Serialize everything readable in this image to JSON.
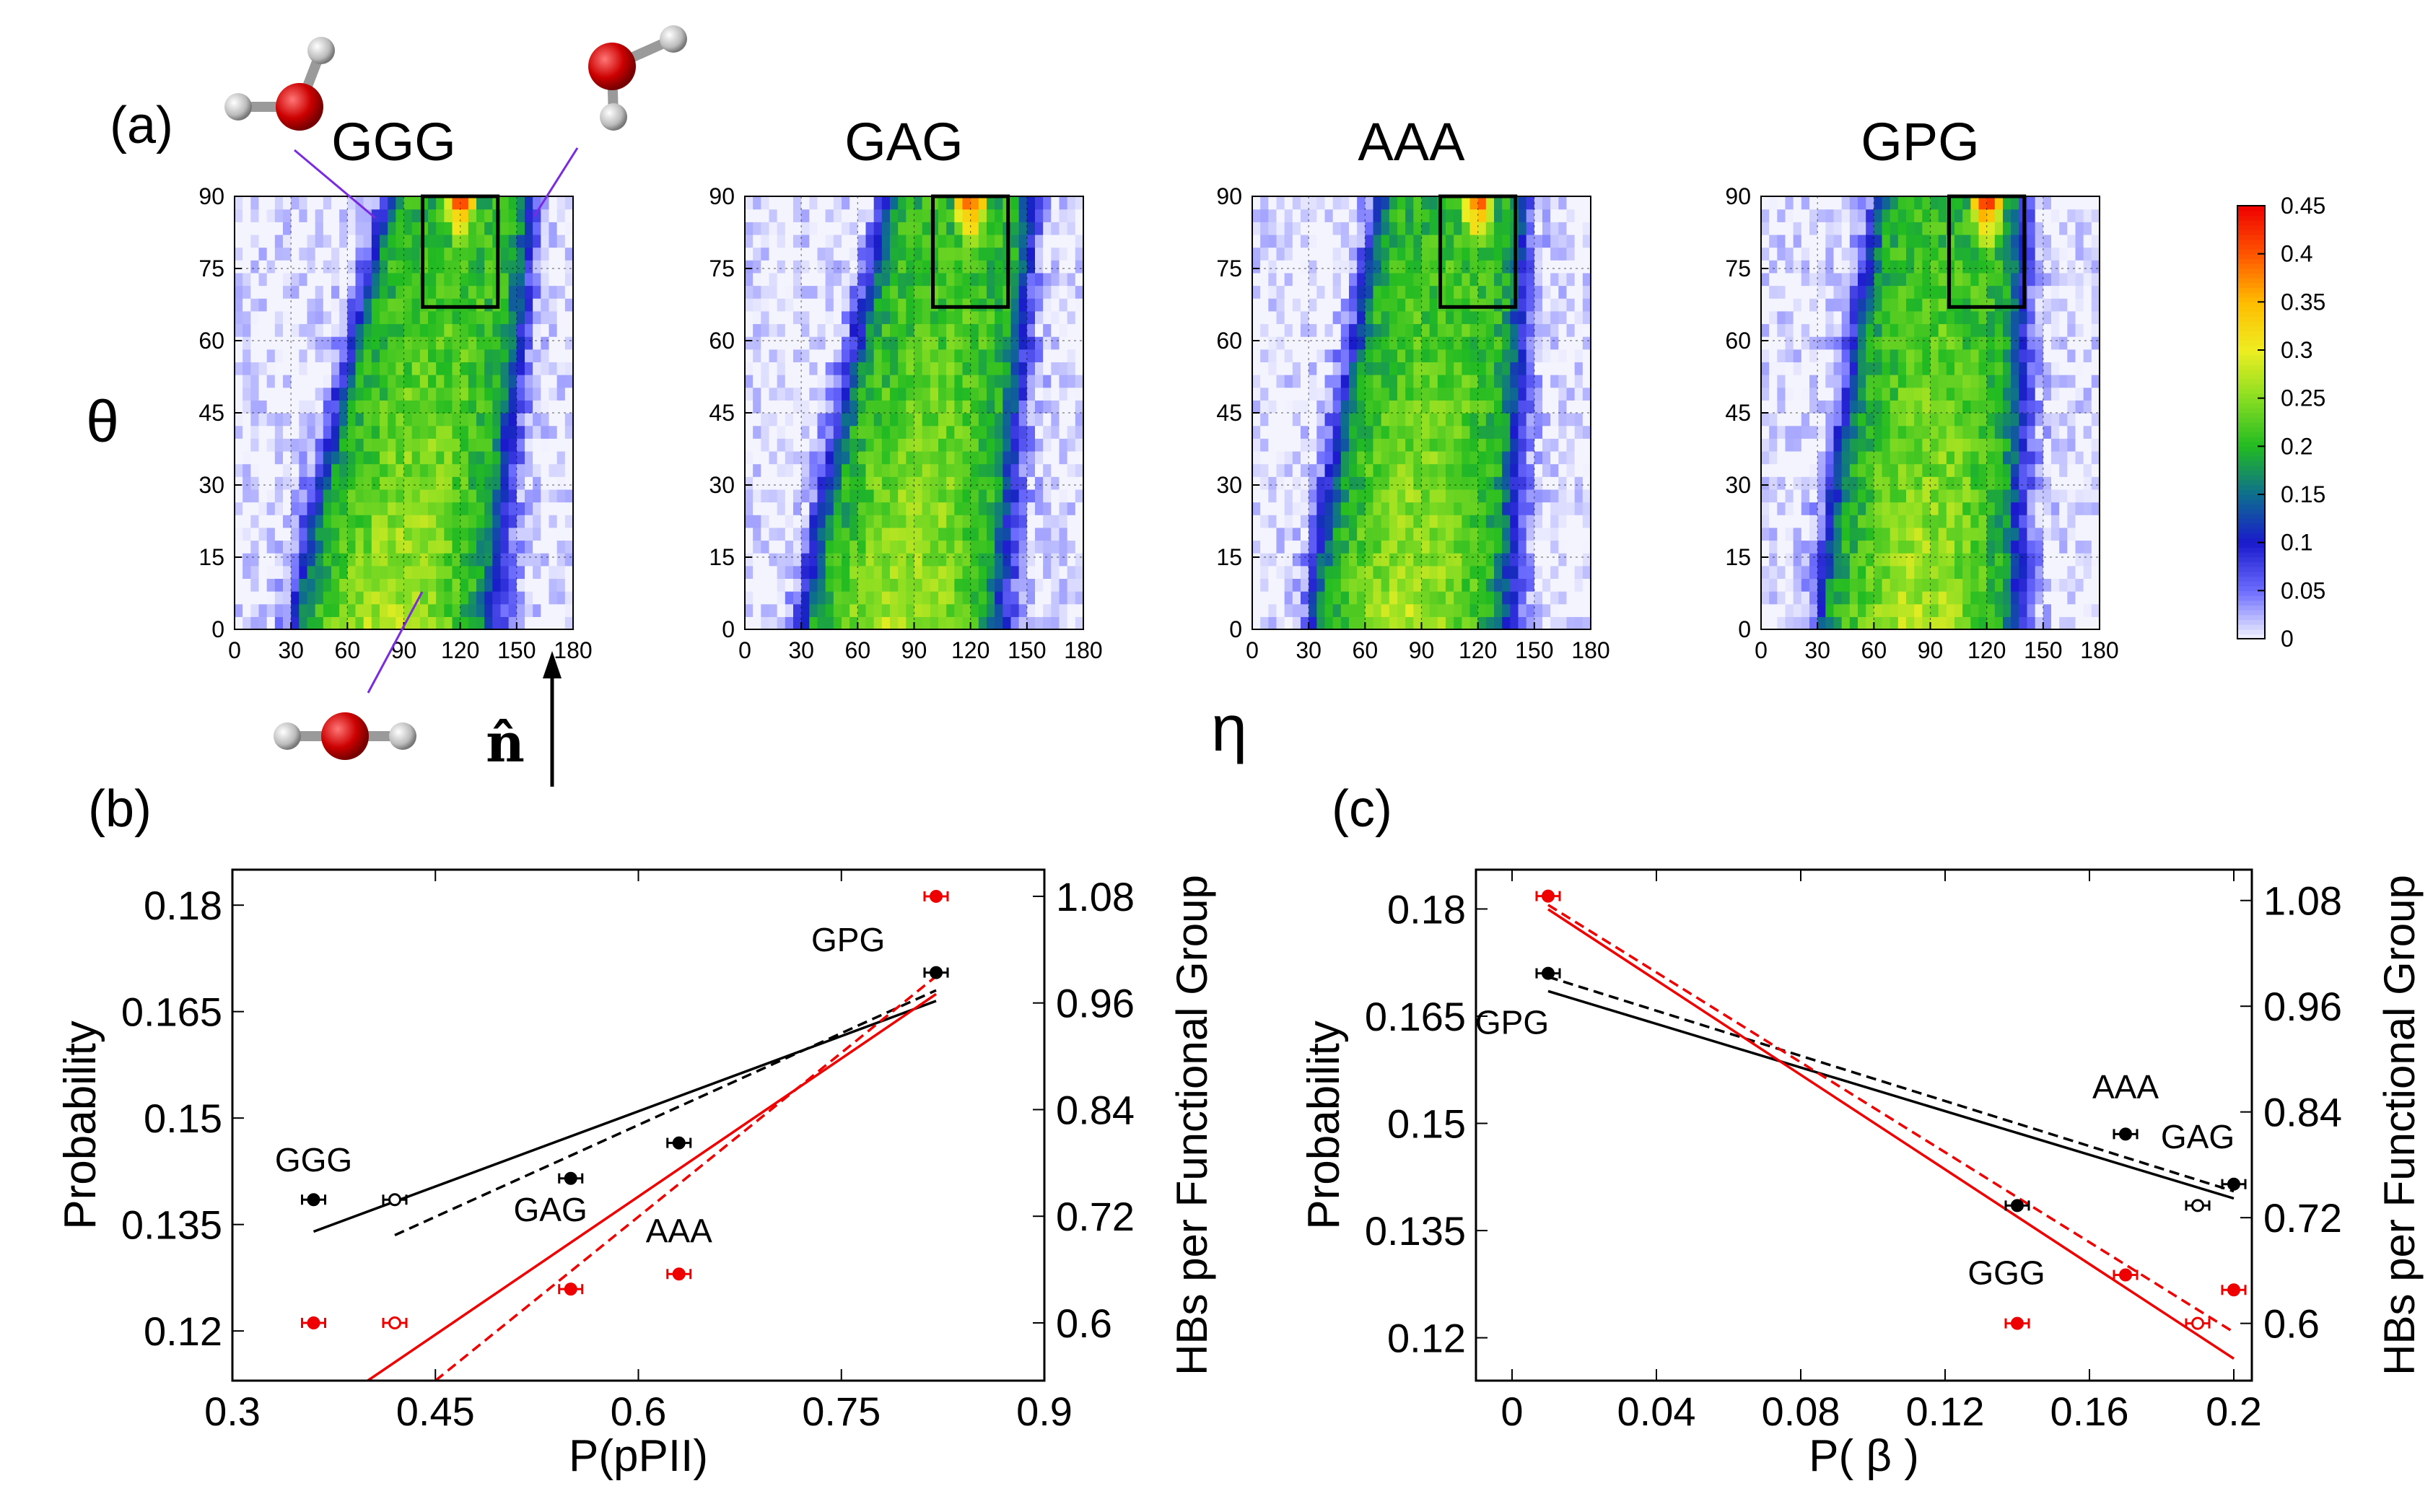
{
  "panel_a": {
    "label": "(a)",
    "ylabel": "θ",
    "xlabel": "η",
    "arrow_label": "n̂",
    "x_ticks": [
      "0",
      "30",
      "60",
      "90",
      "120",
      "150",
      "180"
    ],
    "y_ticks": [
      "0",
      "15",
      "30",
      "45",
      "60",
      "75",
      "90"
    ],
    "heatmaps": [
      {
        "title": "GGG",
        "skew": 1.0
      },
      {
        "title": "GAG",
        "skew": 0.85
      },
      {
        "title": "AAA",
        "skew": 0.65
      },
      {
        "title": "GPG",
        "skew": 0.5
      }
    ],
    "box_region": {
      "eta": [
        100,
        140
      ],
      "theta": [
        67,
        90
      ]
    },
    "colorbar": {
      "ticks": [
        "0",
        "0.05",
        "0.1",
        "0.15",
        "0.2",
        "0.25",
        "0.3",
        "0.35",
        "0.4",
        "0.45"
      ],
      "colors": [
        "#f4f4ff",
        "#6c6cff",
        "#1a1acc",
        "#0e6e8e",
        "#22bb22",
        "#88dd22",
        "#eeee22",
        "#ffbb00",
        "#ff5500",
        "#ee0000"
      ]
    }
  },
  "chart_data": [
    {
      "type": "scatter",
      "panel": "(b)",
      "xlabel": "P(pPII)",
      "ylabel": "Probability",
      "ylabel_right": "HBs per Functional Group",
      "xlim": [
        0.3,
        0.9
      ],
      "ylim": [
        0.113,
        0.185
      ],
      "ylim_right": [
        0.535,
        1.11
      ],
      "x_ticks": [
        "0.3",
        "0.45",
        "0.6",
        "0.75",
        "0.9"
      ],
      "y_ticks": [
        "0.12",
        "0.135",
        "0.15",
        "0.165",
        "0.18"
      ],
      "y_ticks_right": [
        "0.6",
        "0.72",
        "0.84",
        "0.96",
        "1.08"
      ],
      "series": [
        {
          "name": "Probability",
          "color": "#000000",
          "axis": "left",
          "points": [
            {
              "x": 0.36,
              "y": 0.1385,
              "filled": true
            },
            {
              "x": 0.42,
              "y": 0.1385,
              "filled": false
            },
            {
              "x": 0.55,
              "y": 0.1415,
              "filled": true
            },
            {
              "x": 0.63,
              "y": 0.1465,
              "filled": true
            },
            {
              "x": 0.82,
              "y": 0.1705,
              "filled": true
            }
          ]
        },
        {
          "name": "HBs",
          "color": "#ee0000",
          "axis": "right",
          "points": [
            {
              "x": 0.36,
              "y": 0.6,
              "filled": true
            },
            {
              "x": 0.42,
              "y": 0.6,
              "filled": false
            },
            {
              "x": 0.55,
              "y": 0.638,
              "filled": true
            },
            {
              "x": 0.63,
              "y": 0.655,
              "filled": true
            },
            {
              "x": 0.82,
              "y": 1.08,
              "filled": true
            }
          ]
        }
      ],
      "fit_lines": [
        {
          "color": "#000000",
          "dashed": false,
          "axis": "left",
          "x": [
            0.36,
            0.82
          ],
          "y": [
            0.134,
            0.1665
          ]
        },
        {
          "color": "#000000",
          "dashed": true,
          "axis": "left",
          "x": [
            0.42,
            0.82
          ],
          "y": [
            0.1335,
            0.168
          ]
        },
        {
          "color": "#ee0000",
          "dashed": false,
          "axis": "right",
          "x": [
            0.4,
            0.82
          ],
          "y": [
            0.535,
            0.97
          ]
        },
        {
          "color": "#ee0000",
          "dashed": true,
          "axis": "right",
          "x": [
            0.45,
            0.82
          ],
          "y": [
            0.535,
            0.99
          ]
        }
      ],
      "annotations": [
        {
          "text": "GGG",
          "x": 0.36,
          "y": 0.1425
        },
        {
          "text": "GAG",
          "x": 0.535,
          "y": 0.1355
        },
        {
          "text": "AAA",
          "x": 0.63,
          "y": 0.1325
        },
        {
          "text": "GPG",
          "x": 0.755,
          "y": 0.1735
        }
      ]
    },
    {
      "type": "scatter",
      "panel": "(c)",
      "xlabel": "P( β )",
      "ylabel": "Probability",
      "ylabel_right": "HBs per Functional Group",
      "xlim": [
        -0.01,
        0.205
      ],
      "ylim": [
        0.114,
        0.1855
      ],
      "ylim_right": [
        0.535,
        1.115
      ],
      "x_ticks": [
        "0",
        "0.04",
        "0.08",
        "0.12",
        "0.16",
        "0.2"
      ],
      "x_tick_values": [
        0,
        0.04,
        0.08,
        0.12,
        0.16,
        0.2
      ],
      "y_ticks": [
        "0.12",
        "0.135",
        "0.15",
        "0.165",
        "0.18"
      ],
      "y_ticks_right": [
        "0.6",
        "0.72",
        "0.84",
        "0.96",
        "1.08"
      ],
      "series": [
        {
          "name": "Probability",
          "color": "#000000",
          "axis": "left",
          "points": [
            {
              "x": 0.01,
              "y": 0.171,
              "filled": true
            },
            {
              "x": 0.14,
              "y": 0.1385,
              "filled": true
            },
            {
              "x": 0.17,
              "y": 0.1485,
              "filled": true
            },
            {
              "x": 0.19,
              "y": 0.1385,
              "filled": false
            },
            {
              "x": 0.2,
              "y": 0.1415,
              "filled": true
            }
          ]
        },
        {
          "name": "HBs",
          "color": "#ee0000",
          "axis": "right",
          "points": [
            {
              "x": 0.01,
              "y": 1.085,
              "filled": true
            },
            {
              "x": 0.14,
              "y": 0.6,
              "filled": true
            },
            {
              "x": 0.17,
              "y": 0.655,
              "filled": true
            },
            {
              "x": 0.19,
              "y": 0.6,
              "filled": false
            },
            {
              "x": 0.2,
              "y": 0.638,
              "filled": true
            }
          ]
        }
      ],
      "fit_lines": [
        {
          "color": "#000000",
          "dashed": false,
          "axis": "left",
          "x": [
            0.01,
            0.2
          ],
          "y": [
            0.1685,
            0.1395
          ]
        },
        {
          "color": "#000000",
          "dashed": true,
          "axis": "left",
          "x": [
            0.01,
            0.2
          ],
          "y": [
            0.1705,
            0.1405
          ]
        },
        {
          "color": "#ee0000",
          "dashed": false,
          "axis": "right",
          "x": [
            0.01,
            0.2
          ],
          "y": [
            1.07,
            0.56
          ]
        },
        {
          "color": "#ee0000",
          "dashed": true,
          "axis": "right",
          "x": [
            0.01,
            0.2
          ],
          "y": [
            1.075,
            0.59
          ]
        }
      ],
      "annotations": [
        {
          "text": "GPG",
          "x": 0.0,
          "y": 0.1625
        },
        {
          "text": "AAA",
          "x": 0.17,
          "y": 0.1535
        },
        {
          "text": "GAG",
          "x": 0.19,
          "y": 0.1465
        },
        {
          "text": "GGG",
          "x": 0.137,
          "y": 0.1275
        }
      ]
    }
  ]
}
